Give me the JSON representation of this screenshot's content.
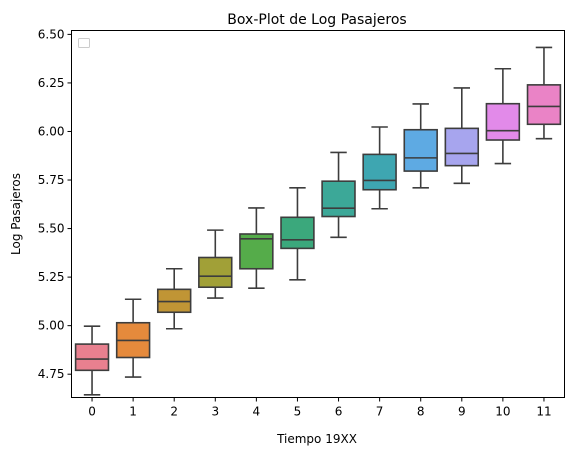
{
  "chart_data": {
    "type": "boxplot",
    "title": "Box-Plot de Log Pasajeros",
    "xlabel": "Tiempo 19XX",
    "ylabel": "Log Pasajeros",
    "categories": [
      "0",
      "1",
      "2",
      "3",
      "4",
      "5",
      "6",
      "7",
      "8",
      "9",
      "10",
      "11"
    ],
    "yticks": [
      "4.75",
      "5.00",
      "5.25",
      "5.50",
      "5.75",
      "6.00",
      "6.25",
      "6.50"
    ],
    "ylim": [
      4.63,
      6.52
    ],
    "grid": false,
    "legend": "top-left (empty)",
    "boxes": [
      {
        "category": "0",
        "min": 4.644,
        "q1": 4.77,
        "median": 4.828,
        "q3": 4.905,
        "max": 4.997,
        "color": "#e8808f"
      },
      {
        "category": "1",
        "min": 4.735,
        "q1": 4.836,
        "median": 4.924,
        "q3": 5.015,
        "max": 5.136,
        "color": "#e58a3c"
      },
      {
        "category": "2",
        "min": 4.984,
        "q1": 5.069,
        "median": 5.124,
        "q3": 5.187,
        "max": 5.293,
        "color": "#c09535"
      },
      {
        "category": "3",
        "min": 5.142,
        "q1": 5.198,
        "median": 5.255,
        "q3": 5.351,
        "max": 5.492,
        "color": "#a1a037"
      },
      {
        "category": "4",
        "min": 5.193,
        "q1": 5.293,
        "median": 5.447,
        "q3": 5.472,
        "max": 5.606,
        "color": "#55ac4a"
      },
      {
        "category": "5",
        "min": 5.236,
        "q1": 5.398,
        "median": 5.442,
        "q3": 5.558,
        "max": 5.71,
        "color": "#3ba87c"
      },
      {
        "category": "6",
        "min": 5.455,
        "q1": 5.562,
        "median": 5.605,
        "q3": 5.744,
        "max": 5.892,
        "color": "#3ca898"
      },
      {
        "category": "7",
        "min": 5.602,
        "q1": 5.7,
        "median": 5.748,
        "q3": 5.882,
        "max": 6.023,
        "color": "#3ea6b1"
      },
      {
        "category": "8",
        "min": 5.71,
        "q1": 5.796,
        "median": 5.864,
        "q3": 6.009,
        "max": 6.142,
        "color": "#5eaae3"
      },
      {
        "category": "9",
        "min": 5.733,
        "q1": 5.824,
        "median": 5.887,
        "q3": 6.016,
        "max": 6.224,
        "color": "#a7a5ee"
      },
      {
        "category": "10",
        "min": 5.835,
        "q1": 5.956,
        "median": 6.004,
        "q3": 6.143,
        "max": 6.323,
        "color": "#e28ae9"
      },
      {
        "category": "11",
        "min": 5.963,
        "q1": 6.037,
        "median": 6.129,
        "q3": 6.24,
        "max": 6.433,
        "color": "#ea83c6"
      }
    ]
  }
}
